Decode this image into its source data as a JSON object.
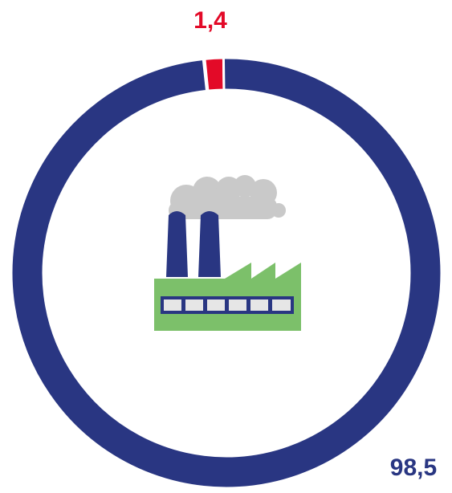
{
  "chart_data": {
    "type": "donut",
    "values": [
      1.4,
      98.5
    ],
    "value_labels": [
      "1,4",
      "98,5"
    ],
    "colors": [
      "#e30a28",
      "#293682"
    ]
  }
}
